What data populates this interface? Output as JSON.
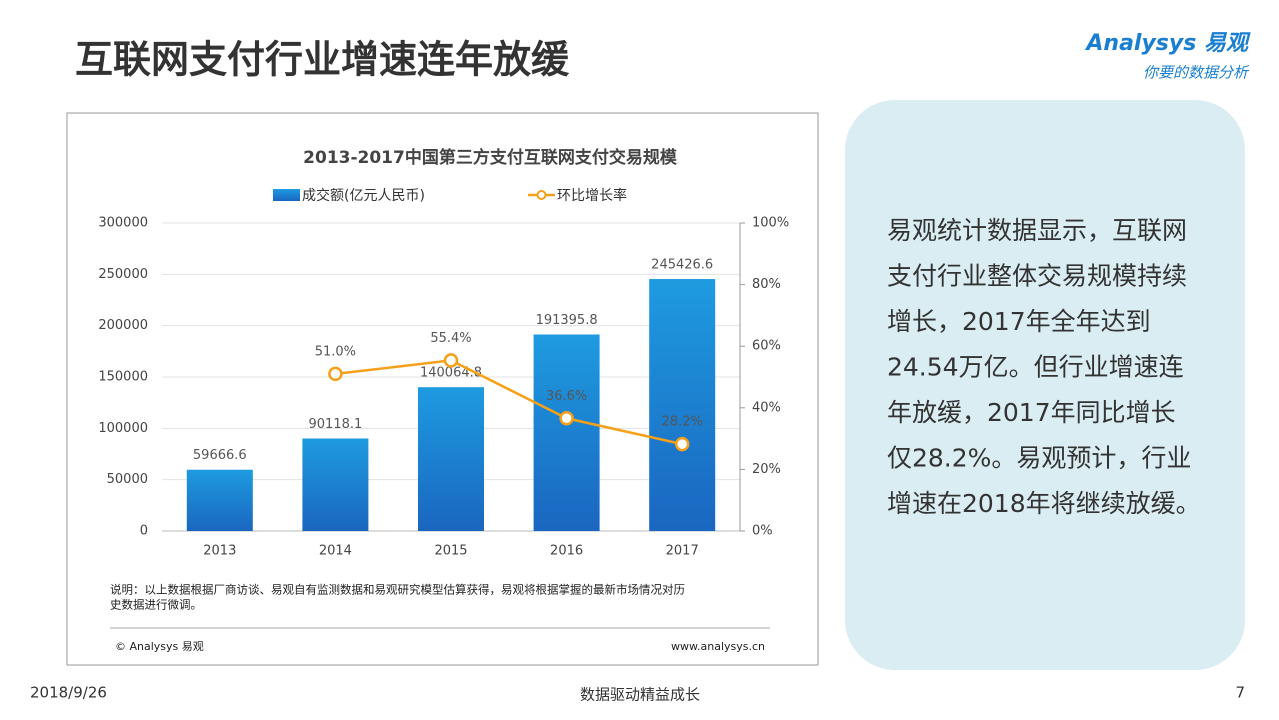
{
  "title": "互联网支付行业增速连年放缓",
  "logo": {
    "name": "Analysys 易观",
    "slogan": "你要的数据分析"
  },
  "chart_data": {
    "type": "bar",
    "title": "2013-2017中国第三方支付互联网支付交易规模",
    "categories": [
      "2013",
      "2014",
      "2015",
      "2016",
      "2017"
    ],
    "series": [
      {
        "name": "成交额(亿元人民币)",
        "type": "bar",
        "color": "#1a84d4",
        "values": [
          59666.6,
          90118.1,
          140064.8,
          191395.8,
          245426.6
        ]
      },
      {
        "name": "环比增长率",
        "type": "line",
        "axis": "y2",
        "color": "#f5a01a",
        "values": [
          null,
          51.0,
          55.4,
          36.6,
          28.2
        ],
        "value_labels": [
          null,
          "51.0%",
          "55.4%",
          "36.6%",
          "28.2%"
        ]
      }
    ],
    "ylim": [
      0,
      300000
    ],
    "yticks": [
      0,
      50000,
      100000,
      150000,
      200000,
      250000,
      300000
    ],
    "y2lim": [
      0,
      100
    ],
    "y2ticks": [
      {
        "value": 0,
        "label": "0%"
      },
      {
        "value": 20,
        "label": "20%"
      },
      {
        "value": 40,
        "label": "40%"
      },
      {
        "value": 60,
        "label": "60%"
      },
      {
        "value": 80,
        "label": "80%"
      },
      {
        "value": 100,
        "label": "100%"
      }
    ],
    "grid": true,
    "note": [
      "说明：以上数据根据厂商访谈、易观自有监测数据和易观研究模型估算获得，易观将根据掌握的最新市场情况对历",
      "史数据进行微调。"
    ],
    "copyright": "© Analysys 易观",
    "website": "www.analysys.cn"
  },
  "panel": {
    "lines": [
      "易观统计数据显示，互联网",
      "支付行业整体交易规模持续",
      "增长，2017年全年达到",
      "24.54万亿。但行业增速连",
      "年放缓，2017年同比增长",
      "仅28.2%。易观预计，行业",
      "增速在2018年将继续放缓。"
    ]
  },
  "footer": {
    "date": "2018/9/26",
    "slogan": "数据驱动精益成长",
    "page": "7"
  }
}
